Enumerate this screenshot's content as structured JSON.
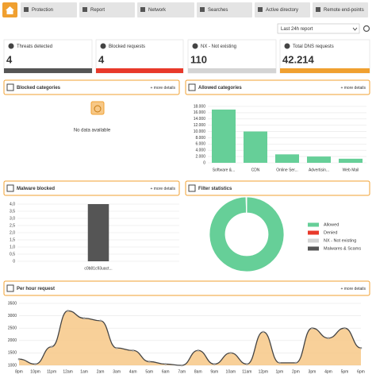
{
  "nav": {
    "tabs": [
      "Protection",
      "Report",
      "Network",
      "Searches",
      "Active directory",
      "Remote end-points"
    ]
  },
  "report_select": "Last 24h report",
  "stats": [
    {
      "label": "Threats detected",
      "value": "4",
      "color": "#555555"
    },
    {
      "label": "Blocked requests",
      "value": "4",
      "color": "#e8392a"
    },
    {
      "label": "NX - Not existing",
      "value": "110",
      "color": "#d4d4d4"
    },
    {
      "label": "Total DNS requests",
      "value": "42.214",
      "color": "#f0a030"
    }
  ],
  "panels": {
    "blocked_categories": {
      "title": "Blocked categories",
      "link": "+ more details",
      "empty_text": "No data available"
    },
    "allowed_categories": {
      "link": "+ more details"
    },
    "malware_blocked": {
      "link": "+ more details"
    },
    "per_hour": {
      "link": "+ more details"
    }
  },
  "chart_data": [
    {
      "type": "bar",
      "title": "Allowed categories",
      "categories": [
        "Software &...",
        "CDN",
        "Online Ser...",
        "Advertisin...",
        "Web Mail"
      ],
      "values": [
        17000,
        10000,
        2700,
        2000,
        1300
      ],
      "color": "#66cf98",
      "ylim": [
        0,
        18000
      ],
      "yticks": [
        0,
        {
          "value": 2000,
          "label": "2.000"
        },
        {
          "value": 4000,
          "label": "4.000"
        },
        {
          "value": 6000,
          "label": "6.000"
        },
        {
          "value": 8000,
          "label": "8.000"
        },
        {
          "value": 10000,
          "label": "10.000"
        },
        {
          "value": 12000,
          "label": "12.000"
        },
        {
          "value": 14000,
          "label": "14.000"
        },
        {
          "value": 16000,
          "label": "16.000"
        },
        {
          "value": 18000,
          "label": "18.000"
        }
      ],
      "grid": true
    },
    {
      "type": "bar",
      "title": "Malware blocked",
      "categories": [
        "c0b81c93uact..."
      ],
      "values": [
        4
      ],
      "color": "#555555",
      "ylim": [
        0,
        4
      ],
      "yticks": [
        0,
        {
          "value": 0.5,
          "label": "0,5"
        },
        {
          "value": 1,
          "label": "1,0"
        },
        {
          "value": 1.5,
          "label": "1,5"
        },
        {
          "value": 2,
          "label": "2,0"
        },
        {
          "value": 2.5,
          "label": "2,5"
        },
        {
          "value": 3,
          "label": "3,0"
        },
        {
          "value": 3.5,
          "label": "3,5"
        },
        {
          "value": 4,
          "label": "4,0"
        }
      ],
      "grid": true
    },
    {
      "type": "pie",
      "title": "Filter statistics",
      "categories": [
        "Allowed",
        "Denied",
        "NX - Not existing",
        "Malwares & Scams"
      ],
      "values": [
        42096,
        4,
        110,
        4
      ],
      "colors": [
        "#66cf98",
        "#e8392a",
        "#d4d4d4",
        "#555555"
      ]
    },
    {
      "type": "line",
      "title": "Per hour request",
      "categories": [
        "8pm",
        "10pm",
        "11pm",
        "12am",
        "1am",
        "2am",
        "3am",
        "4am",
        "5am",
        "6am",
        "7am",
        "8am",
        "9am",
        "10am",
        "11am",
        "12pm",
        "1pm",
        "2pm",
        "3pm",
        "4pm",
        "5pm",
        "6pm"
      ],
      "values": [
        1250,
        1050,
        1750,
        3200,
        2900,
        2800,
        1700,
        1600,
        1150,
        1050,
        1000,
        1600,
        1050,
        1500,
        1050,
        2350,
        1100,
        1100,
        2500,
        2100,
        2500,
        1700
      ],
      "color": "#444444",
      "fill_color": "#f7c887",
      "ylim": [
        1000,
        3500
      ],
      "yticks": [
        1000,
        1500,
        2000,
        2500,
        3000,
        3500
      ],
      "grid": true
    }
  ]
}
